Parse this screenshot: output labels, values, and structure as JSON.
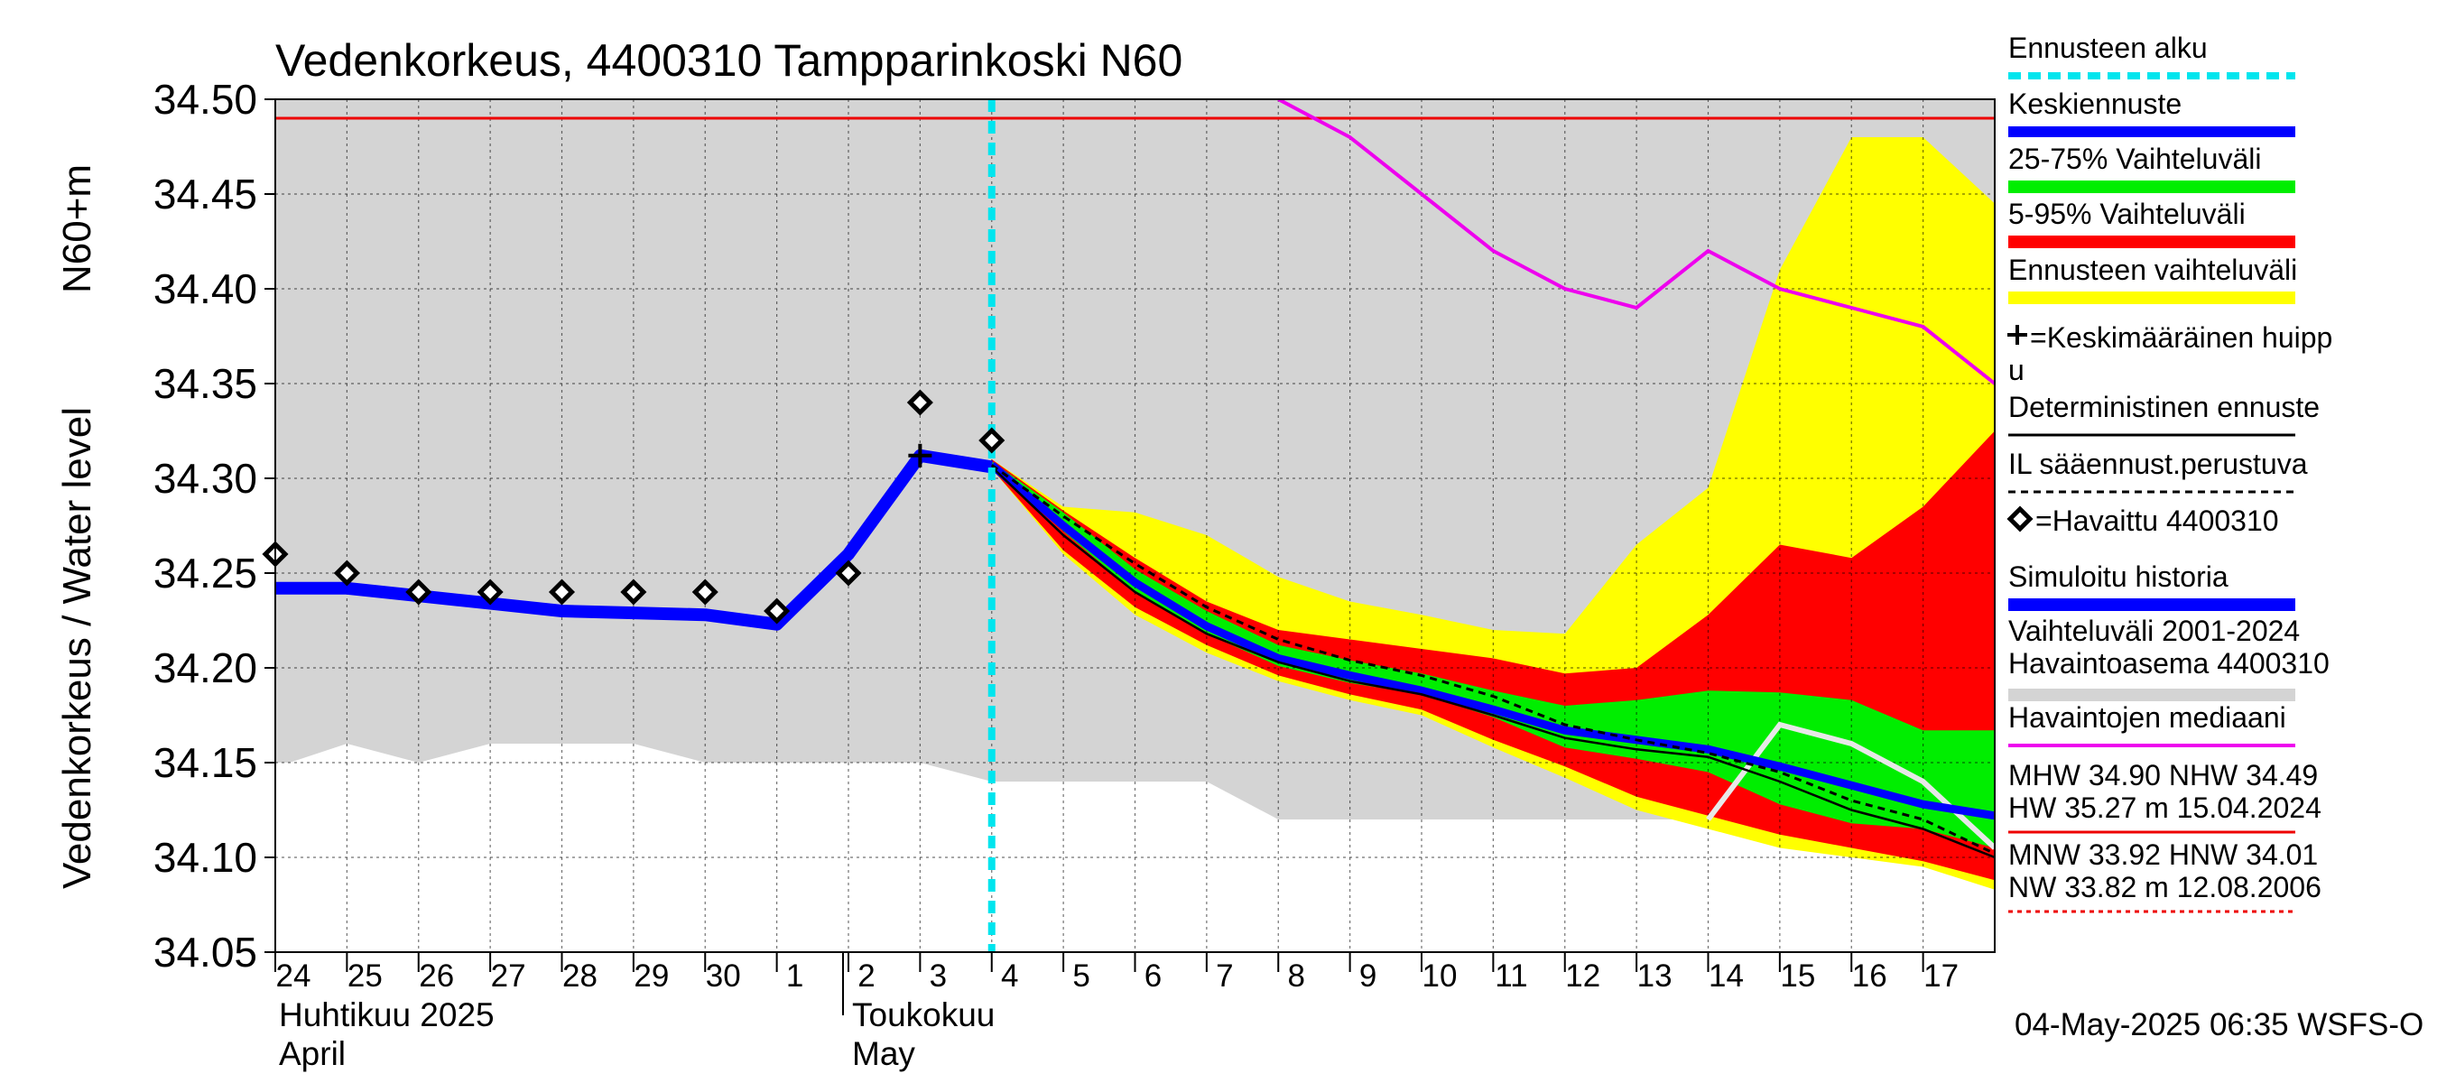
{
  "chart_data": {
    "type": "line",
    "title": "Vedenkorkeus, 4400310 Tampparinkoski N60",
    "ylabel_main": "Vedenkorkeus / Water level",
    "ylabel_unit": "N60+m",
    "ylim": [
      34.05,
      34.5
    ],
    "yticks": [
      "34.50",
      "34.45",
      "34.40",
      "34.35",
      "34.30",
      "34.25",
      "34.20",
      "34.15",
      "34.10",
      "34.05"
    ],
    "xlim": [
      24.0,
      48.0
    ],
    "xticks": [
      {
        "x": 24,
        "label": "24"
      },
      {
        "x": 25,
        "label": "25"
      },
      {
        "x": 26,
        "label": "26"
      },
      {
        "x": 27,
        "label": "27"
      },
      {
        "x": 28,
        "label": "28"
      },
      {
        "x": 29,
        "label": "29"
      },
      {
        "x": 30,
        "label": "30"
      },
      {
        "x": 31,
        "label": "1"
      },
      {
        "x": 32,
        "label": "2"
      },
      {
        "x": 33,
        "label": "3"
      },
      {
        "x": 34,
        "label": "4"
      },
      {
        "x": 35,
        "label": "5"
      },
      {
        "x": 36,
        "label": "6"
      },
      {
        "x": 37,
        "label": "7"
      },
      {
        "x": 38,
        "label": "8"
      },
      {
        "x": 39,
        "label": "9"
      },
      {
        "x": 40,
        "label": "10"
      },
      {
        "x": 41,
        "label": "11"
      },
      {
        "x": 42,
        "label": "12"
      },
      {
        "x": 43,
        "label": "13"
      },
      {
        "x": 44,
        "label": "14"
      },
      {
        "x": 45,
        "label": "15"
      },
      {
        "x": 46,
        "label": "16"
      },
      {
        "x": 47,
        "label": "17"
      }
    ],
    "month_labels": [
      {
        "x": 24,
        "line1": "Huhtikuu  2025",
        "line2": "April"
      },
      {
        "x": 32,
        "line1": "Toukokuu",
        "line2": "May"
      }
    ],
    "footer": "04-May-2025 06:35 WSFS-O",
    "grid": true,
    "colors": {
      "historical_range": "#d4d4d4",
      "forecast_range": "#ffff00",
      "p5_95": "#ff0000",
      "p25_75": "#00ee00",
      "mean_forecast": "#0000ff",
      "median": "#ee00ee",
      "forecast_start": "#00e5ee",
      "reference_line": "#ee0000",
      "simulated": "#0000ff",
      "deterministic": "#000000"
    },
    "reference_line_y": 34.49,
    "forecast_start_x": 34.0,
    "series": {
      "historical_range": {
        "x": [
          24,
          24.2,
          25,
          26,
          27,
          28,
          29,
          30,
          31,
          32,
          33,
          34,
          35,
          36,
          37,
          38,
          39,
          40,
          41,
          42,
          43,
          44,
          45,
          46,
          47,
          48
        ],
        "lower": [
          34.15,
          34.15,
          34.16,
          34.15,
          34.16,
          34.16,
          34.16,
          34.15,
          34.15,
          34.15,
          34.15,
          34.14,
          34.14,
          34.14,
          34.14,
          34.12,
          34.12,
          34.12,
          34.12,
          34.12,
          34.12,
          34.12,
          34.12,
          34.12,
          34.12,
          34.12
        ],
        "upper": 34.5
      },
      "forecast_range": {
        "x": [
          34,
          35,
          36,
          37,
          38,
          39,
          40,
          41,
          42,
          43,
          44,
          45,
          46,
          47,
          48
        ],
        "lower": [
          34.305,
          34.26,
          34.228,
          34.208,
          34.193,
          34.183,
          34.175,
          34.158,
          34.142,
          34.125,
          34.115,
          34.105,
          34.1,
          34.095,
          34.083
        ],
        "upper": [
          34.31,
          34.285,
          34.282,
          34.27,
          34.248,
          34.235,
          34.228,
          34.22,
          34.218,
          34.265,
          34.295,
          34.41,
          34.48,
          34.48,
          34.445
        ]
      },
      "p5_95": {
        "x": [
          34,
          35,
          36,
          37,
          38,
          39,
          40,
          41,
          42,
          43,
          44,
          45,
          46,
          47,
          48
        ],
        "lower": [
          34.305,
          34.262,
          34.232,
          34.212,
          34.196,
          34.186,
          34.178,
          34.162,
          34.148,
          34.132,
          34.122,
          34.112,
          34.105,
          34.098,
          34.088
        ],
        "upper": [
          34.31,
          34.283,
          34.258,
          34.235,
          34.22,
          34.215,
          34.21,
          34.205,
          34.197,
          34.2,
          34.228,
          34.265,
          34.258,
          34.285,
          34.325
        ]
      },
      "p25_75": {
        "x": [
          34,
          35,
          36,
          37,
          38,
          39,
          40,
          41,
          42,
          43,
          44,
          45,
          46,
          47,
          48
        ],
        "lower": [
          34.306,
          34.272,
          34.24,
          34.218,
          34.201,
          34.192,
          34.186,
          34.174,
          34.158,
          34.152,
          34.145,
          34.128,
          34.118,
          34.115,
          34.105
        ],
        "upper": [
          34.309,
          34.282,
          34.252,
          34.23,
          34.212,
          34.204,
          34.197,
          34.188,
          34.18,
          34.183,
          34.188,
          34.187,
          34.183,
          34.167,
          34.167
        ]
      },
      "mean_forecast": {
        "x": [
          34,
          35,
          36,
          37,
          38,
          39,
          40,
          41,
          42,
          43,
          44,
          45,
          46,
          47,
          48
        ],
        "y": [
          34.307,
          34.275,
          34.245,
          34.222,
          34.205,
          34.196,
          34.188,
          34.178,
          34.167,
          34.162,
          34.157,
          34.148,
          34.138,
          34.128,
          34.122
        ]
      },
      "deterministic": {
        "x": [
          34,
          35,
          36,
          37,
          38,
          39,
          40,
          41,
          42,
          43,
          44,
          45,
          46,
          47,
          48
        ],
        "y": [
          34.306,
          34.27,
          34.24,
          34.218,
          34.203,
          34.193,
          34.186,
          34.175,
          34.163,
          34.157,
          34.153,
          34.14,
          34.125,
          34.115,
          34.1
        ]
      },
      "il_forecast": {
        "x": [
          34,
          35,
          36,
          37,
          38,
          39,
          40,
          41,
          42,
          43,
          44,
          45,
          46,
          47,
          48
        ],
        "y": [
          34.307,
          34.28,
          34.255,
          34.232,
          34.215,
          34.204,
          34.196,
          34.185,
          34.17,
          34.162,
          34.155,
          34.145,
          34.13,
          34.12,
          34.102
        ]
      },
      "median": {
        "x": [
          38,
          39,
          40,
          41,
          42,
          43,
          44,
          45,
          46,
          47,
          48
        ],
        "y": [
          34.5,
          34.48,
          34.45,
          34.42,
          34.4,
          34.39,
          34.42,
          34.4,
          34.39,
          34.38,
          34.35
        ]
      },
      "simulated": {
        "x": [
          24,
          25,
          26,
          27,
          28,
          29,
          30,
          31,
          32,
          33,
          34
        ],
        "y": [
          34.242,
          34.242,
          34.238,
          34.234,
          34.23,
          34.229,
          34.228,
          34.223,
          34.26,
          34.312,
          34.306
        ]
      },
      "white_line": {
        "x": [
          44,
          45,
          46,
          47,
          48
        ],
        "y": [
          34.12,
          34.17,
          34.16,
          34.14,
          34.105
        ]
      },
      "observed": {
        "x": [
          24,
          25,
          26,
          27,
          28,
          29,
          30,
          31,
          32,
          33,
          34
        ],
        "y": [
          34.26,
          34.25,
          34.24,
          34.24,
          34.24,
          34.24,
          34.24,
          34.23,
          34.25,
          34.34,
          34.32
        ]
      },
      "mean_peak": {
        "x": 33.0,
        "y": 34.312
      }
    }
  },
  "legend": {
    "items": [
      {
        "key": "forecast_start",
        "label": "Ennusteen alku"
      },
      {
        "key": "mean_forecast",
        "label": "Keskiennuste"
      },
      {
        "key": "p25_75",
        "label": "25-75% Vaihteluväli"
      },
      {
        "key": "p5_95",
        "label": "5-95% Vaihteluväli"
      },
      {
        "key": "forecast_range",
        "label": "Ennusteen vaihteluväli"
      },
      {
        "key": "mean_peak",
        "label": "=Keskimääräinen huipp",
        "label2": "u"
      },
      {
        "key": "deterministic",
        "label": "Deterministinen ennuste"
      },
      {
        "key": "il_forecast",
        "label": "IL sääennust.perustuva"
      },
      {
        "key": "observed",
        "label": "=Havaittu 4400310"
      },
      {
        "key": "simulated",
        "label": "Simuloitu historia"
      },
      {
        "key": "historical_range",
        "label": "Vaihteluväli 2001-2024",
        "label2": " Havaintoasema 4400310"
      },
      {
        "key": "median",
        "label": "Havaintojen mediaani"
      },
      {
        "key": "high",
        "label": "MHW  34.90 NHW  34.49",
        "label2": "HW  35.27 m 15.04.2024"
      },
      {
        "key": "low",
        "label": "MNW  33.92 HNW  34.01",
        "label2": "NW  33.82 m 12.08.2006"
      }
    ]
  }
}
